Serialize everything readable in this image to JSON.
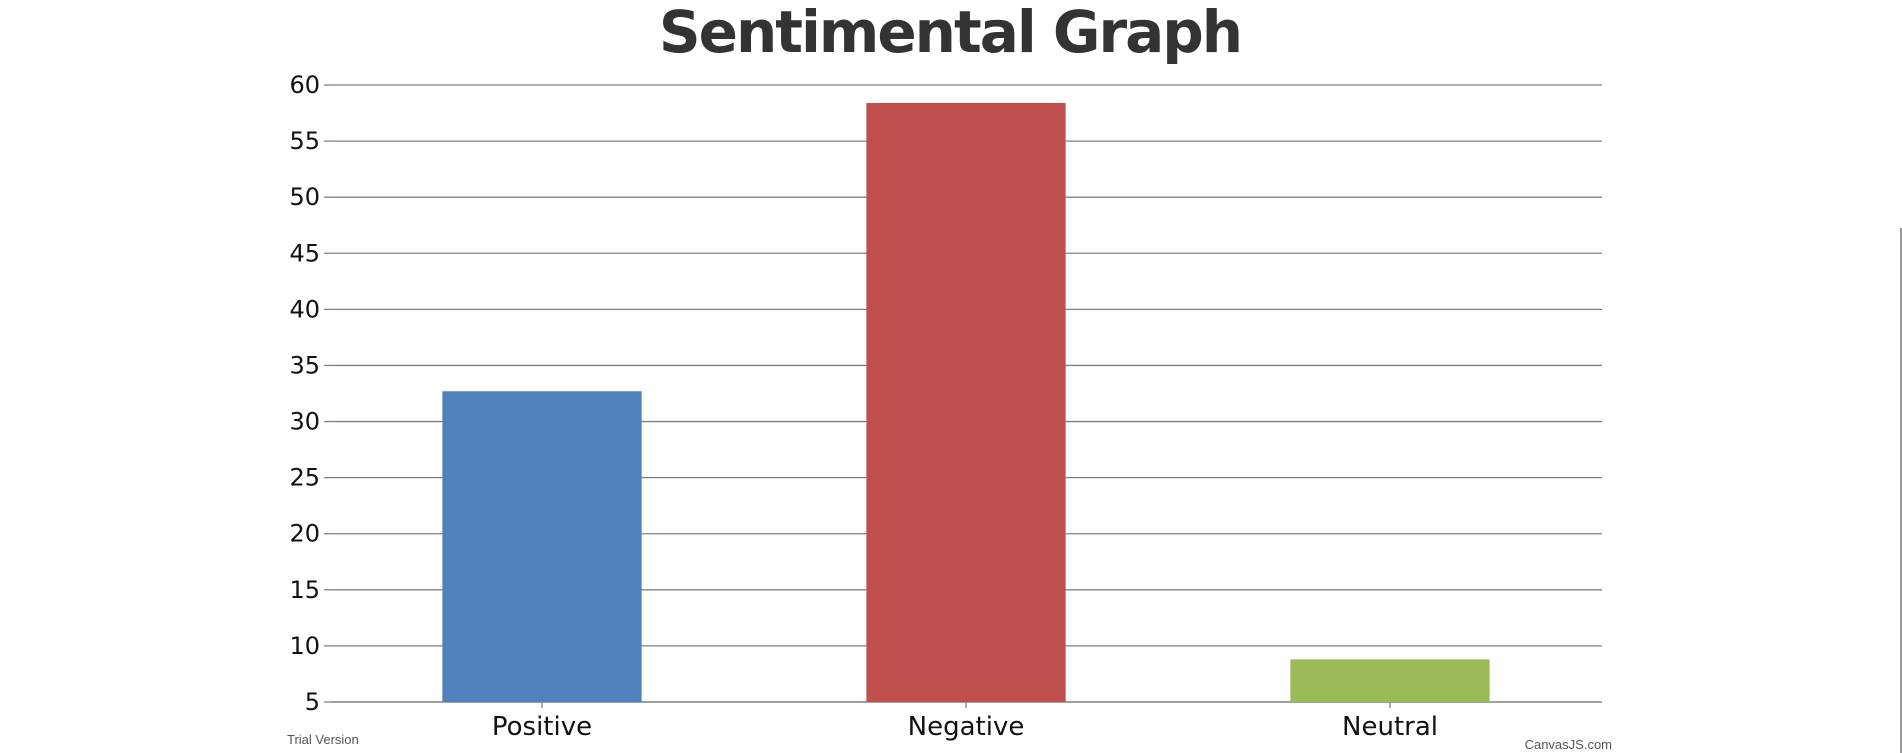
{
  "chart_data": {
    "type": "bar",
    "title": "Sentimental Graph",
    "xlabel": "",
    "ylabel": "",
    "categories": [
      "Positive",
      "Negative",
      "Neutral"
    ],
    "values": [
      32.7,
      58.4,
      8.8
    ],
    "colors": [
      "#4f81bc",
      "#c0504e",
      "#9bbb58"
    ],
    "ylim": [
      5,
      60
    ],
    "yticks": [
      5,
      10,
      15,
      20,
      25,
      30,
      35,
      40,
      45,
      50,
      55,
      60
    ],
    "grid": true,
    "legend": "none"
  },
  "footer": {
    "trial_text": "Trial Version",
    "credit_text": "CanvasJS.com"
  }
}
